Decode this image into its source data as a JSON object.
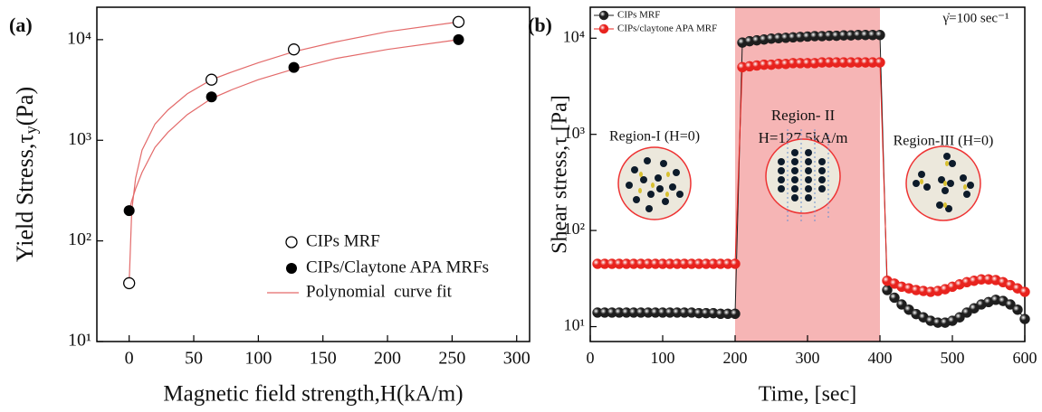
{
  "chart_data": [
    {
      "type": "scatter",
      "label": "(a)",
      "x_label": "Magnetic field strength,H(kA/m)",
      "y_label": {
        "text": "Yield Stress,τ",
        "sub": "y",
        "unit": "(Pa)"
      },
      "x": [
        0,
        63.75,
        127.5,
        255
      ],
      "series": [
        {
          "name": "CIPs MRF",
          "color": "#000000",
          "marker": "open",
          "values": [
            38,
            4000,
            8000,
            15000
          ]
        },
        {
          "name": "CIPs/Claytone APA MRFs",
          "color": "#000000",
          "marker": "filled",
          "values": [
            200,
            2700,
            5300,
            10000
          ]
        }
      ],
      "fit": {
        "name": "Polynomial  curve fit",
        "color": "#e36a6a",
        "x": [
          0,
          2,
          5,
          10,
          20,
          30,
          45,
          63.75,
          80,
          100,
          127.5,
          160,
          200,
          255
        ],
        "curves": [
          [
            38,
            200,
            420,
            800,
            1450,
            2000,
            2900,
            4000,
            4800,
            5900,
            7600,
            9500,
            12000,
            15000
          ],
          [
            200,
            250,
            330,
            480,
            850,
            1200,
            1800,
            2600,
            3200,
            4000,
            5100,
            6500,
            8000,
            10000
          ]
        ]
      },
      "xlim": [
        -25,
        310
      ],
      "xticks": [
        0,
        50,
        100,
        150,
        200,
        250,
        300
      ],
      "ylim": [
        10,
        21000
      ],
      "yscale": "log",
      "yticks": [
        {
          "value": 10,
          "label": "10¹"
        },
        {
          "value": 100,
          "label": "10²"
        },
        {
          "value": 1000,
          "label": "10³"
        },
        {
          "value": 10000,
          "label": "10⁴"
        }
      ],
      "legend": "lower right"
    },
    {
      "type": "scatter",
      "label": "(b)",
      "x_label": "Time, [sec]",
      "y_label": "Shear stress,τ [Pa]",
      "x": [
        10,
        20,
        30,
        40,
        50,
        60,
        70,
        80,
        90,
        100,
        110,
        120,
        130,
        140,
        150,
        160,
        170,
        180,
        190,
        200,
        210,
        220,
        230,
        240,
        250,
        260,
        270,
        280,
        290,
        300,
        310,
        320,
        330,
        340,
        350,
        360,
        370,
        380,
        390,
        400,
        410,
        420,
        430,
        440,
        450,
        460,
        470,
        480,
        490,
        500,
        510,
        520,
        530,
        540,
        550,
        560,
        570,
        580,
        590,
        600
      ],
      "series": [
        {
          "name": "CIPs MRF",
          "color": "#1e1e1e",
          "marker": "ball",
          "values": [
            14,
            14,
            14,
            14,
            14,
            14,
            14,
            14,
            14,
            14,
            14,
            14,
            14,
            14,
            13.8,
            13.8,
            13.8,
            13.6,
            13.6,
            13.6,
            9000,
            9300,
            9500,
            9700,
            9900,
            10000,
            10100,
            10200,
            10300,
            10400,
            10500,
            10500,
            10600,
            10600,
            10700,
            10700,
            10800,
            10800,
            10800,
            10800,
            24,
            20,
            17,
            15,
            13.5,
            12.5,
            11.5,
            11,
            11,
            11.5,
            12.5,
            14,
            15.5,
            17,
            18,
            19,
            18.5,
            17,
            15,
            12
          ]
        },
        {
          "name": "CIPs/claytone APA MRF",
          "color": "#e8231e",
          "marker": "ball",
          "values": [
            45,
            45,
            45,
            45,
            45,
            45,
            45,
            45,
            45,
            45,
            45,
            45,
            45,
            45,
            45,
            45,
            45,
            45,
            45,
            45,
            5000,
            5100,
            5200,
            5300,
            5300,
            5400,
            5400,
            5500,
            5500,
            5500,
            5500,
            5600,
            5600,
            5600,
            5600,
            5600,
            5600,
            5600,
            5600,
            5600,
            30,
            28,
            26,
            25,
            24,
            23.5,
            23,
            23.5,
            24.5,
            26,
            27.5,
            29,
            30,
            31,
            31,
            30.5,
            29,
            27,
            25,
            23
          ]
        }
      ],
      "shaded_region": {
        "x": [
          200,
          400
        ],
        "color": "#f6b5b5"
      },
      "annotations": [
        "Region-I (H=0)",
        "Region- II",
        "H=127.5kA/m",
        "Region-III (H=0)",
        "γ̇=100 sec⁻¹"
      ],
      "xlim": [
        0,
        600
      ],
      "xticks": [
        0,
        100,
        200,
        300,
        400,
        500,
        600
      ],
      "ylim": [
        7,
        21000
      ],
      "yscale": "log",
      "yticks": [
        {
          "value": 10,
          "label": "10¹"
        },
        {
          "value": 100,
          "label": "10²"
        },
        {
          "value": 1000,
          "label": "10³"
        },
        {
          "value": 10000,
          "label": "10⁴"
        }
      ],
      "legend": "upper left"
    }
  ]
}
